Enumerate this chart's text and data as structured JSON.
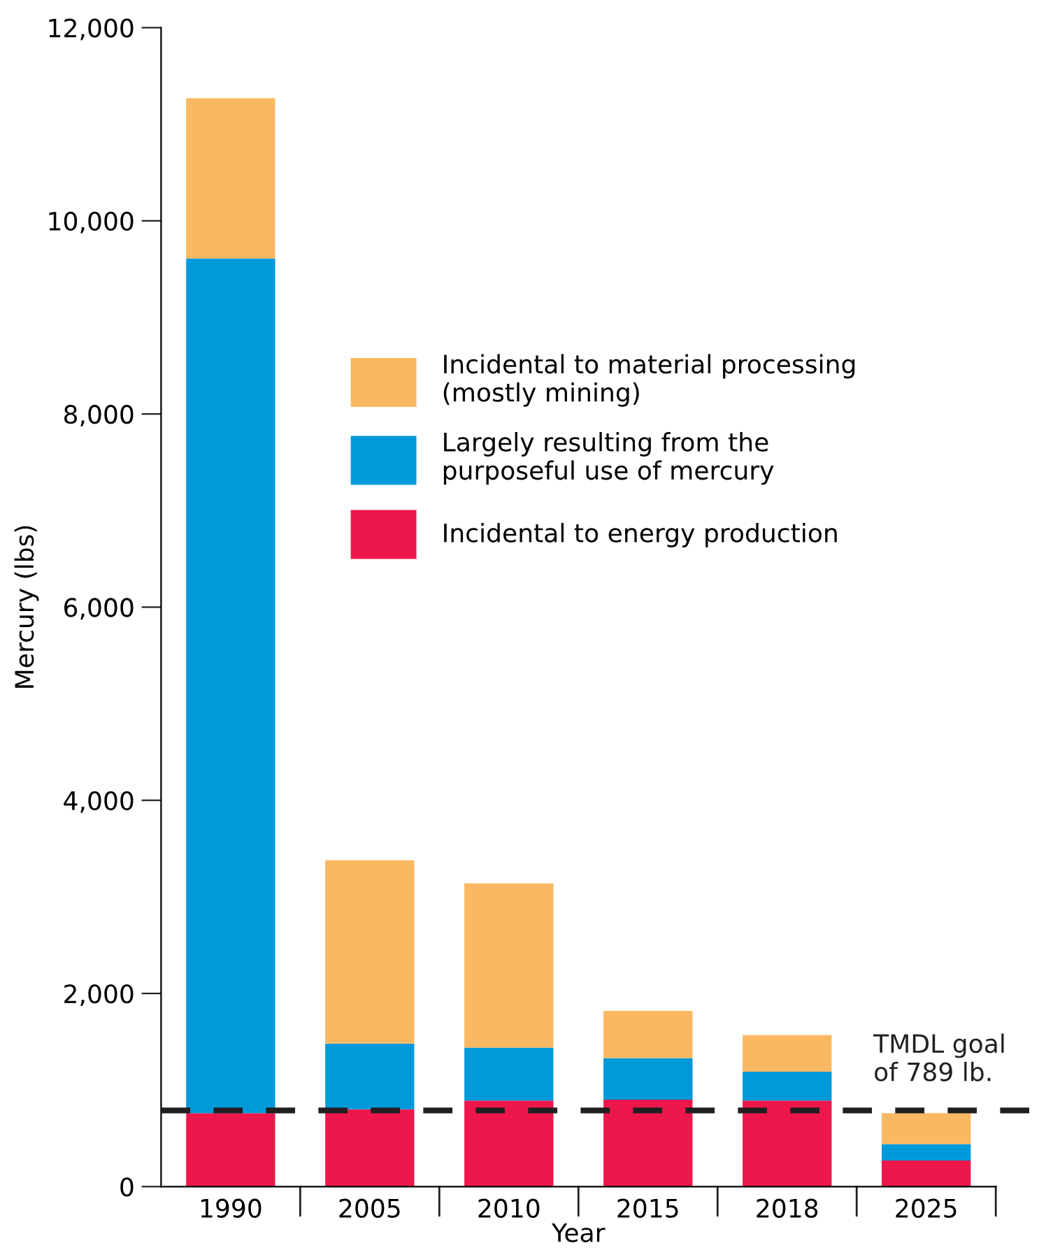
{
  "chart_data": {
    "type": "bar",
    "stacked": true,
    "xlabel": "Year",
    "ylabel": "Mercury (lbs)",
    "categories": [
      "1990",
      "2005",
      "2010",
      "2015",
      "2018",
      "2025"
    ],
    "series": [
      {
        "name": "Incidental to energy production",
        "color": "#ed174b",
        "values": [
          760,
          800,
          890,
          900,
          890,
          270
        ]
      },
      {
        "name": "Largely resulting from the\npurposeful use of mercury",
        "color": "#009ada",
        "values": [
          8850,
          680,
          550,
          430,
          300,
          170
        ]
      },
      {
        "name": "Incidental to material processing\n(mostly mining)",
        "color": "#fbb862",
        "values": [
          1660,
          1900,
          1700,
          490,
          380,
          320
        ]
      }
    ],
    "ylim": [
      0,
      12000
    ],
    "yticks": [
      {
        "value": 0,
        "label": "0"
      },
      {
        "value": 2000,
        "label": "2,000"
      },
      {
        "value": 4000,
        "label": "4,000"
      },
      {
        "value": 6000,
        "label": "6,000"
      },
      {
        "value": 8000,
        "label": "8,000"
      },
      {
        "value": 10000,
        "label": "10,000"
      },
      {
        "value": 12000,
        "label": "12,000"
      }
    ],
    "ref_lines": [
      {
        "axis": "y",
        "value": 789,
        "label": "TMDL goal\nof 789 lb.",
        "color": "#231f20",
        "line_style": "dashed"
      }
    ],
    "legend": "right",
    "grid": false
  }
}
